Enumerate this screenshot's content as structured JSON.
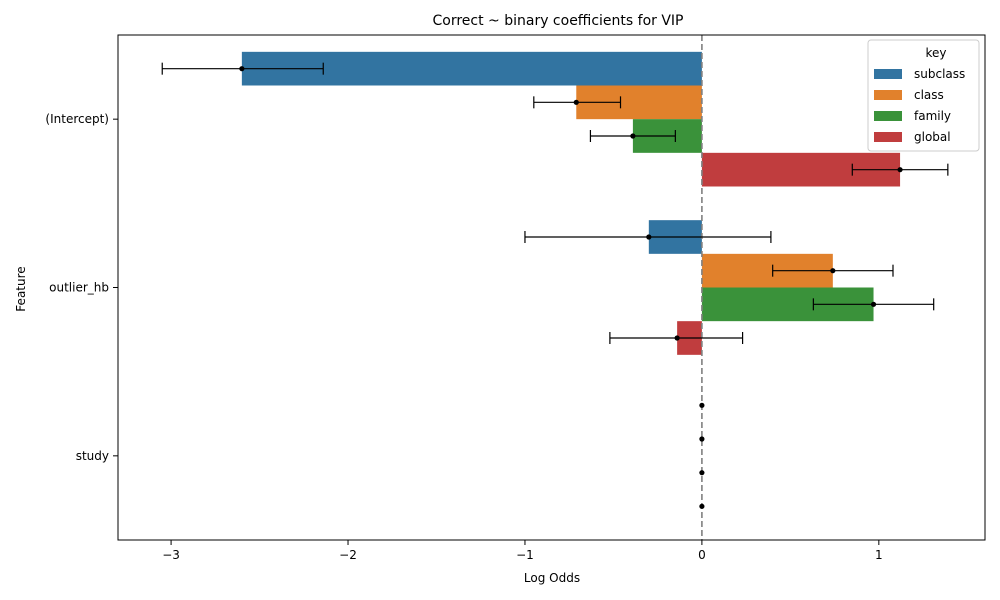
{
  "chart_data": {
    "type": "bar",
    "orientation": "horizontal",
    "title": "Correct ~ binary coefficients for VIP",
    "xlabel": "Log Odds",
    "ylabel": "Feature",
    "xlim": [
      -3.3,
      1.6
    ],
    "xticks": [
      -3,
      -2,
      -1,
      0,
      1
    ],
    "xtick_labels": [
      "−3",
      "−2",
      "−1",
      "0",
      "1"
    ],
    "categories": [
      "(Intercept)",
      "outlier_hb",
      "study"
    ],
    "reference_line": 0,
    "legend": {
      "title": "key",
      "placement": "top-right"
    },
    "series": [
      {
        "name": "subclass",
        "color": "#3274a1",
        "values": [
          -2.6,
          -0.3,
          0.0
        ],
        "ci_low": [
          -3.05,
          -1.0,
          0.0
        ],
        "ci_high": [
          -2.14,
          0.39,
          0.0
        ]
      },
      {
        "name": "class",
        "color": "#e1812c",
        "values": [
          -0.71,
          0.74,
          0.0
        ],
        "ci_low": [
          -0.95,
          0.4,
          0.0
        ],
        "ci_high": [
          -0.46,
          1.08,
          0.0
        ]
      },
      {
        "name": "family",
        "color": "#3a923a",
        "values": [
          -0.39,
          0.97,
          0.0
        ],
        "ci_low": [
          -0.63,
          0.63,
          0.0
        ],
        "ci_high": [
          -0.15,
          1.31,
          0.0
        ]
      },
      {
        "name": "global",
        "color": "#c03d3e",
        "values": [
          1.12,
          -0.14,
          0.0
        ],
        "ci_low": [
          0.85,
          -0.52,
          0.0
        ],
        "ci_high": [
          1.39,
          0.23,
          0.0
        ]
      }
    ]
  }
}
